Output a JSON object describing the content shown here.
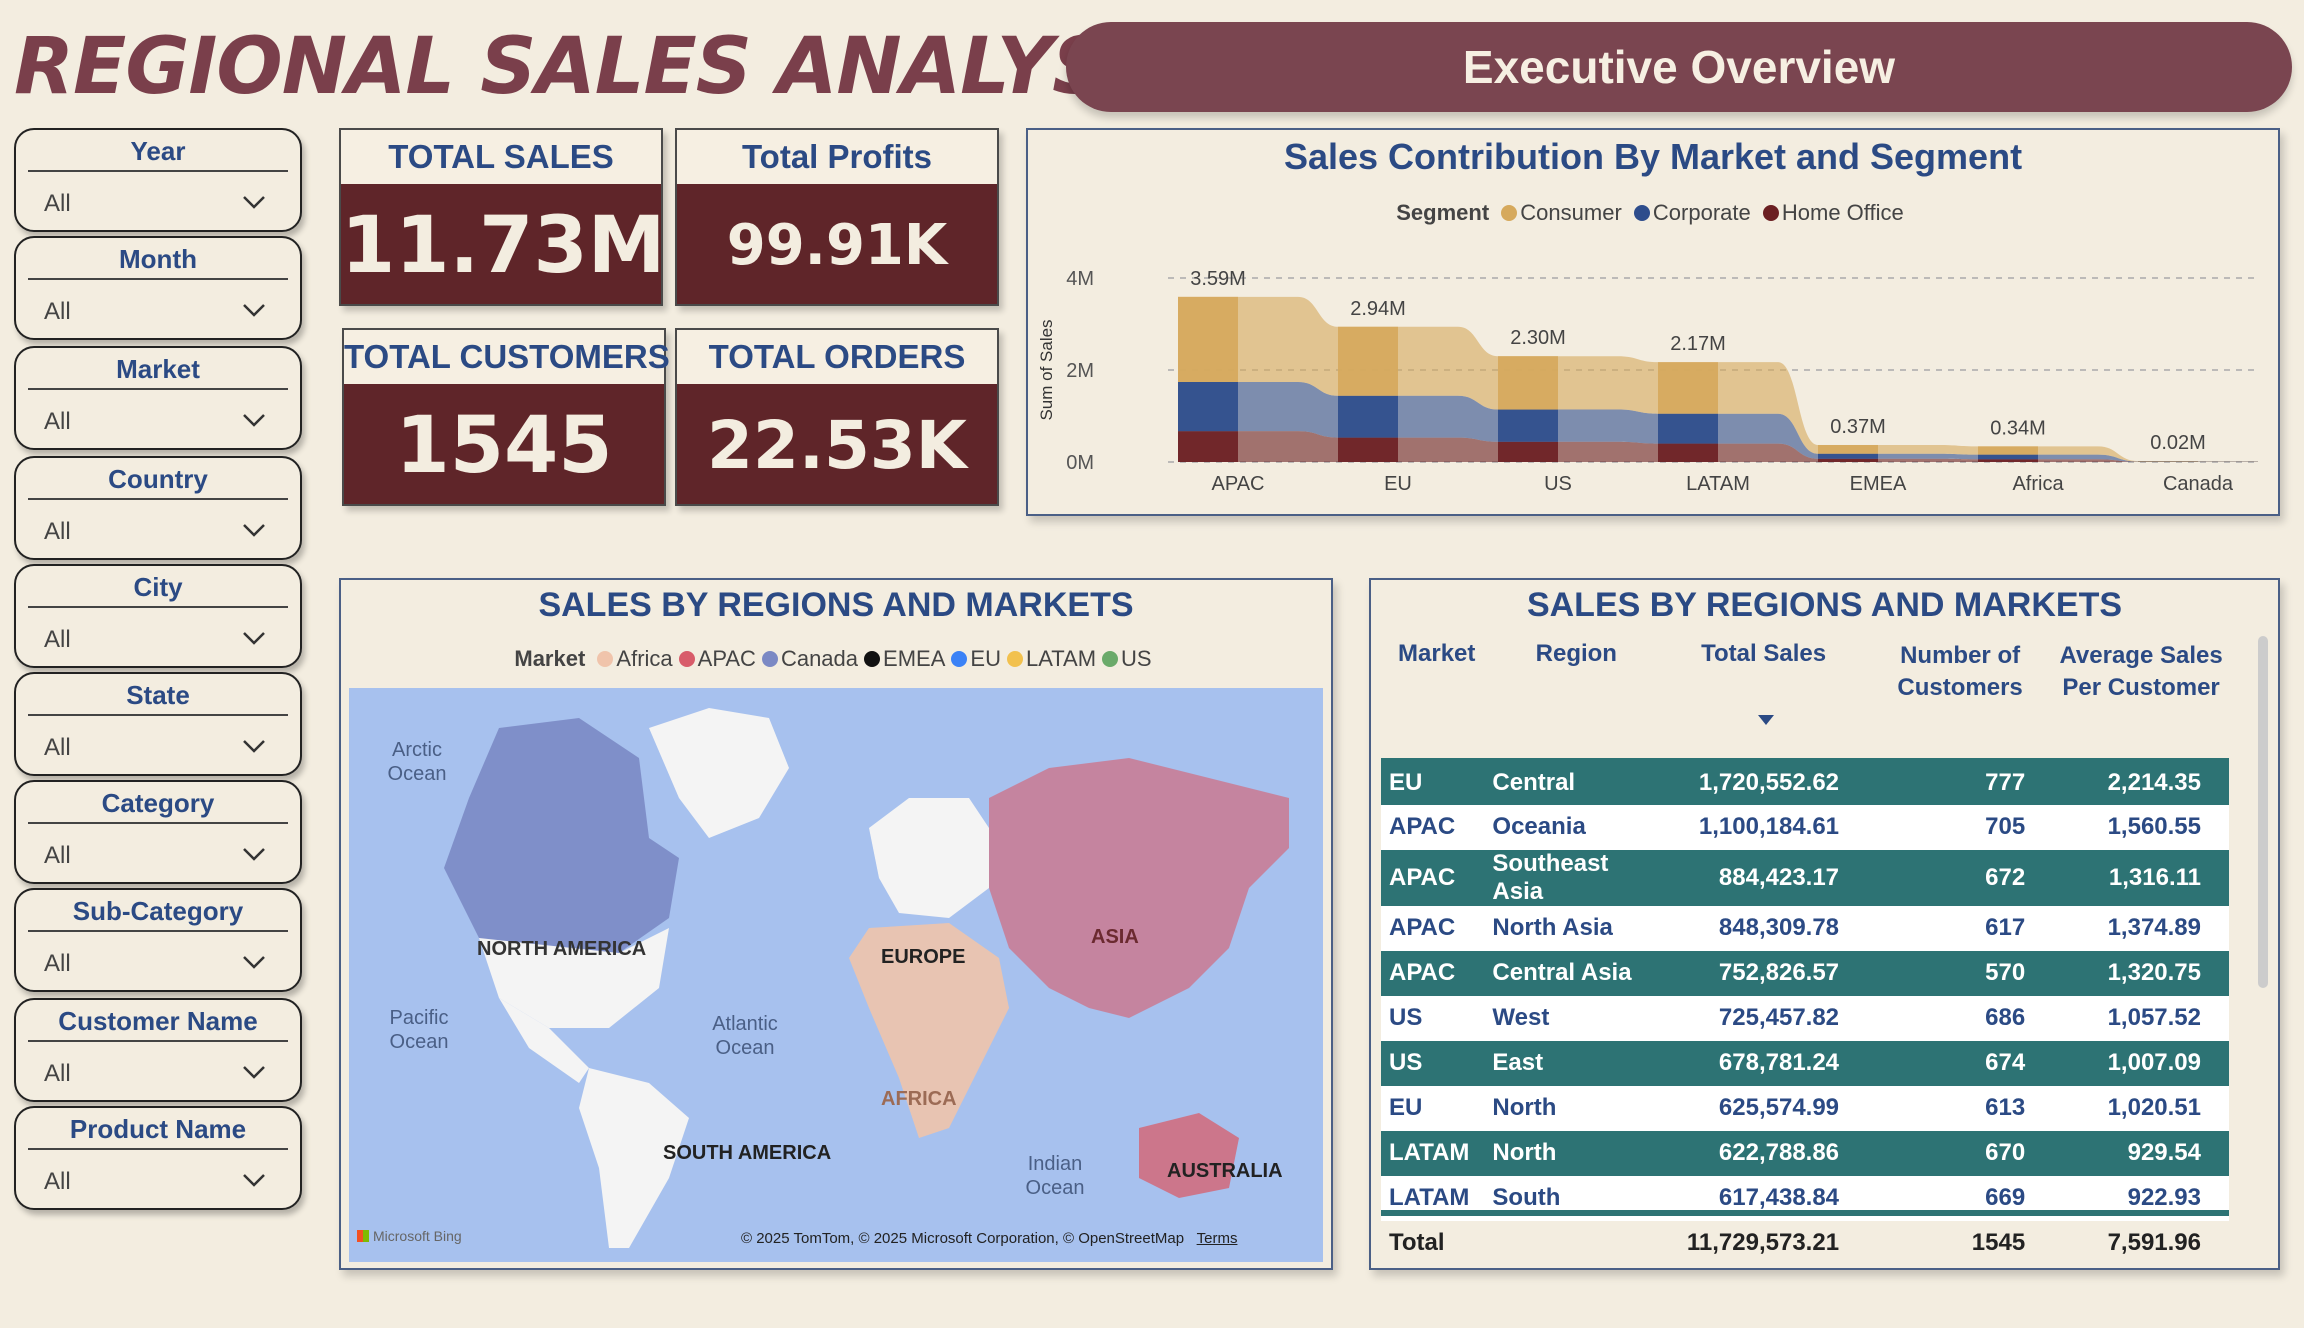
{
  "header": {
    "title": "REGIONAL SALES ANALYSIS",
    "subtitle": "Executive Overview"
  },
  "slicers": [
    {
      "label": "Year",
      "value": "All"
    },
    {
      "label": "Month",
      "value": "All"
    },
    {
      "label": "Market",
      "value": "All"
    },
    {
      "label": "Country",
      "value": "All"
    },
    {
      "label": "City",
      "value": "All"
    },
    {
      "label": "State",
      "value": "All"
    },
    {
      "label": "Category",
      "value": "All"
    },
    {
      "label": "Sub-Category",
      "value": "All"
    },
    {
      "label": "Customer Name",
      "value": "All"
    },
    {
      "label": "Product Name",
      "value": "All"
    }
  ],
  "kpis": {
    "total_sales": {
      "label": "TOTAL SALES",
      "value": "11.73M"
    },
    "total_profits": {
      "label": "Total Profits",
      "value": "99.91K"
    },
    "total_customers": {
      "label": "TOTAL CUSTOMERS",
      "value": "1545"
    },
    "total_orders": {
      "label": "TOTAL ORDERS",
      "value": "22.53K"
    }
  },
  "colors": {
    "consumer": "#d6a95c",
    "corporate": "#2e4d8c",
    "home_office": "#6b1f22",
    "title": "#7a3f4b",
    "kpi_bg": "#5f2529",
    "accent_blue": "#2b4a84",
    "table_dark": "#2d7374"
  },
  "segment_chart": {
    "title": "Sales Contribution By Market and Segment",
    "legend_title": "Segment",
    "ylabel": "Sum of Sales",
    "y_ticks": [
      "0M",
      "2M",
      "4M"
    ]
  },
  "chart_data": {
    "type": "area",
    "title": "Sales Contribution By Market and Segment",
    "ylabel": "Sum of Sales",
    "ylim": [
      0,
      4000000
    ],
    "categories": [
      "APAC",
      "EU",
      "US",
      "LATAM",
      "EMEA",
      "Africa",
      "Canada"
    ],
    "totals": [
      3590000,
      2940000,
      2300000,
      2170000,
      370000,
      340000,
      20000
    ],
    "total_labels": [
      "3.59M",
      "2.94M",
      "2.30M",
      "2.17M",
      "0.37M",
      "0.34M",
      "0.02M"
    ],
    "series": [
      {
        "name": "Consumer",
        "values": [
          1850000,
          1500000,
          1160000,
          1120000,
          190000,
          180000,
          10000
        ]
      },
      {
        "name": "Corporate",
        "values": [
          1070000,
          910000,
          700000,
          650000,
          110000,
          100000,
          6000
        ]
      },
      {
        "name": "Home Office",
        "values": [
          670000,
          530000,
          440000,
          400000,
          70000,
          60000,
          4000
        ]
      }
    ],
    "grid": true,
    "legend": "top"
  },
  "map": {
    "title": "SALES BY REGIONS AND MARKETS",
    "legend_title": "Market",
    "legend": [
      {
        "name": "Africa",
        "color": "#f0c4ab"
      },
      {
        "name": "APAC",
        "color": "#d85c6a"
      },
      {
        "name": "Canada",
        "color": "#7b89c4"
      },
      {
        "name": "EMEA",
        "color": "#111111"
      },
      {
        "name": "EU",
        "color": "#3b82f6"
      },
      {
        "name": "LATAM",
        "color": "#f2c14e"
      },
      {
        "name": "US",
        "color": "#6aaa6a"
      }
    ],
    "labels": {
      "arctic": "Arctic Ocean",
      "north_america": "NORTH AMERICA",
      "europe": "EUROPE",
      "asia": "ASIA",
      "pacific": "Pacific Ocean",
      "atlantic": "Atlantic Ocean",
      "africa": "AFRICA",
      "south_america": "SOUTH AMERICA",
      "indian": "Indian Ocean",
      "australia": "AUSTRALIA"
    },
    "attribution": "© 2025 TomTom, © 2025 Microsoft Corporation, © OpenStreetMap",
    "terms": "Terms",
    "logo": "Microsoft Bing"
  },
  "table": {
    "title": "SALES BY REGIONS AND MARKETS",
    "columns": [
      "Market",
      "Region",
      "Total Sales",
      "Number of Customers",
      "Average Sales Per Customer"
    ],
    "rows": [
      [
        "EU",
        "Central",
        "1,720,552.62",
        "777",
        "2,214.35"
      ],
      [
        "APAC",
        "Oceania",
        "1,100,184.61",
        "705",
        "1,560.55"
      ],
      [
        "APAC",
        "Southeast Asia",
        "884,423.17",
        "672",
        "1,316.11"
      ],
      [
        "APAC",
        "North Asia",
        "848,309.78",
        "617",
        "1,374.89"
      ],
      [
        "APAC",
        "Central Asia",
        "752,826.57",
        "570",
        "1,320.75"
      ],
      [
        "US",
        "West",
        "725,457.82",
        "686",
        "1,057.52"
      ],
      [
        "US",
        "East",
        "678,781.24",
        "674",
        "1,007.09"
      ],
      [
        "EU",
        "North",
        "625,574.99",
        "613",
        "1,020.51"
      ],
      [
        "LATAM",
        "North",
        "622,788.86",
        "670",
        "929.54"
      ],
      [
        "LATAM",
        "South",
        "617,438.84",
        "669",
        "922.93"
      ]
    ],
    "total": [
      "Total",
      "",
      "11,729,573.21",
      "1545",
      "7,591.96"
    ]
  }
}
